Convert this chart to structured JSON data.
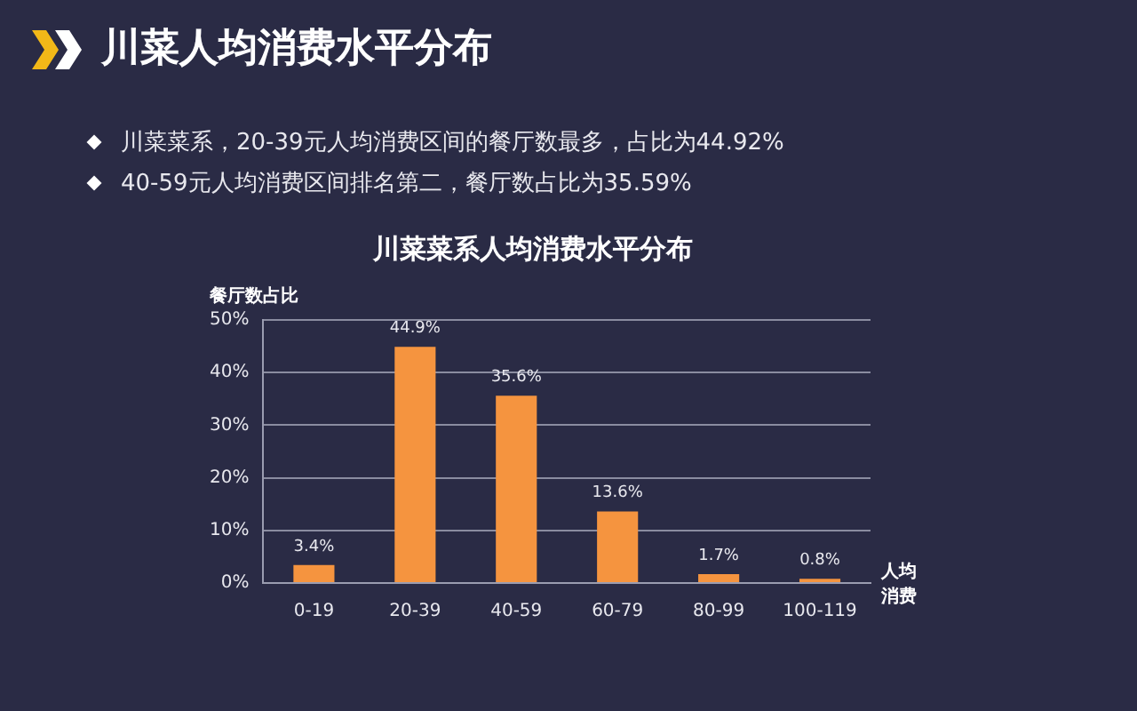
{
  "chart_data": {
    "type": "bar",
    "title": "川菜人均消费水平分布",
    "subtitle": "川菜菜系人均消费水平分布",
    "annotations": [
      "川菜菜系，20-39元人均消费区间的餐厅数最多，占比为44.92%",
      "40-59元人均消费区间排名第二，餐厅数占比为35.59%"
    ],
    "xlabel": "人均消费",
    "ylabel": "餐厅数占比",
    "categories": [
      "0-19",
      "20-39",
      "40-59",
      "60-79",
      "80-99",
      "100-119"
    ],
    "values": [
      3.4,
      44.9,
      35.6,
      13.6,
      1.7,
      0.8
    ],
    "value_labels": [
      "3.4%",
      "44.9%",
      "35.6%",
      "13.6%",
      "1.7%",
      "0.8%"
    ],
    "color": "#f5943f",
    "ylim": [
      0,
      50
    ],
    "yticks": [
      {
        "value": 0,
        "label": "0%"
      },
      {
        "value": 10,
        "label": "10%"
      },
      {
        "value": 20,
        "label": "20%"
      },
      {
        "value": 30,
        "label": "30%"
      },
      {
        "value": 40,
        "label": "40%"
      },
      {
        "value": 50,
        "label": "50%"
      }
    ],
    "grid": "y"
  }
}
